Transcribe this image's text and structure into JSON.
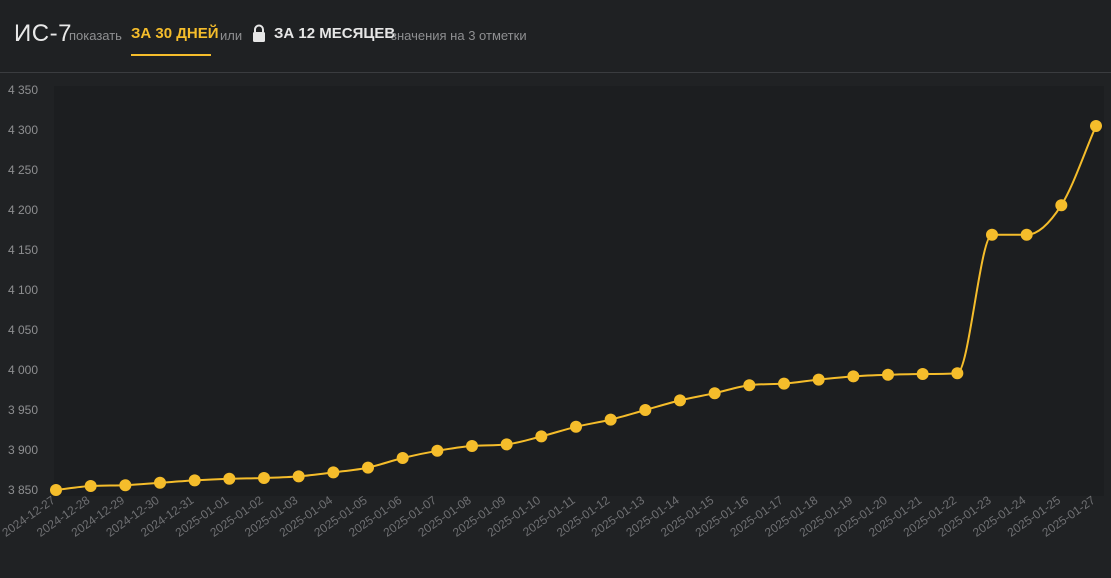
{
  "header": {
    "title": "ИС-7",
    "show_label": "показать",
    "tab_30_days": "ЗА 30 ДНЕЙ",
    "or_label": "или",
    "tab_12_months": "ЗА 12 МЕСЯЦЕВ",
    "note": "значения на 3 отметки"
  },
  "colors": {
    "accent": "#f5bd2b",
    "background": "#202224",
    "plot_background": "#1c1e20"
  },
  "icons": {
    "lock": "lock-icon"
  },
  "chart_data": {
    "type": "line",
    "title": "",
    "xlabel": "",
    "ylabel": "",
    "ylim": [
      3850,
      4350
    ],
    "yticks": [
      3850,
      3900,
      3950,
      4000,
      4050,
      4100,
      4150,
      4200,
      4250,
      4300,
      4350
    ],
    "ytick_labels": [
      "3 850",
      "3 900",
      "3 950",
      "4 000",
      "4 050",
      "4 100",
      "4 150",
      "4 200",
      "4 250",
      "4 300",
      "4 350"
    ],
    "grid": false,
    "x": [
      "2024-12-27",
      "2024-12-28",
      "2024-12-29",
      "2024-12-30",
      "2024-12-31",
      "2025-01-01",
      "2025-01-02",
      "2025-01-03",
      "2025-01-04",
      "2025-01-05",
      "2025-01-06",
      "2025-01-07",
      "2025-01-08",
      "2025-01-09",
      "2025-01-10",
      "2025-01-11",
      "2025-01-12",
      "2025-01-13",
      "2025-01-14",
      "2025-01-15",
      "2025-01-16",
      "2025-01-17",
      "2025-01-18",
      "2025-01-19",
      "2025-01-20",
      "2025-01-21",
      "2025-01-22",
      "2025-01-23",
      "2025-01-24",
      "2025-01-25",
      "2025-01-27"
    ],
    "series": [
      {
        "values": [
          3850,
          3855,
          3856,
          3859,
          3862,
          3864,
          3865,
          3867,
          3872,
          3878,
          3890,
          3899,
          3905,
          3907,
          3917,
          3929,
          3938,
          3950,
          3962,
          3971,
          3981,
          3983,
          3988,
          3992,
          3994,
          3995,
          3996,
          4169,
          4169,
          4206,
          4305
        ]
      }
    ]
  }
}
